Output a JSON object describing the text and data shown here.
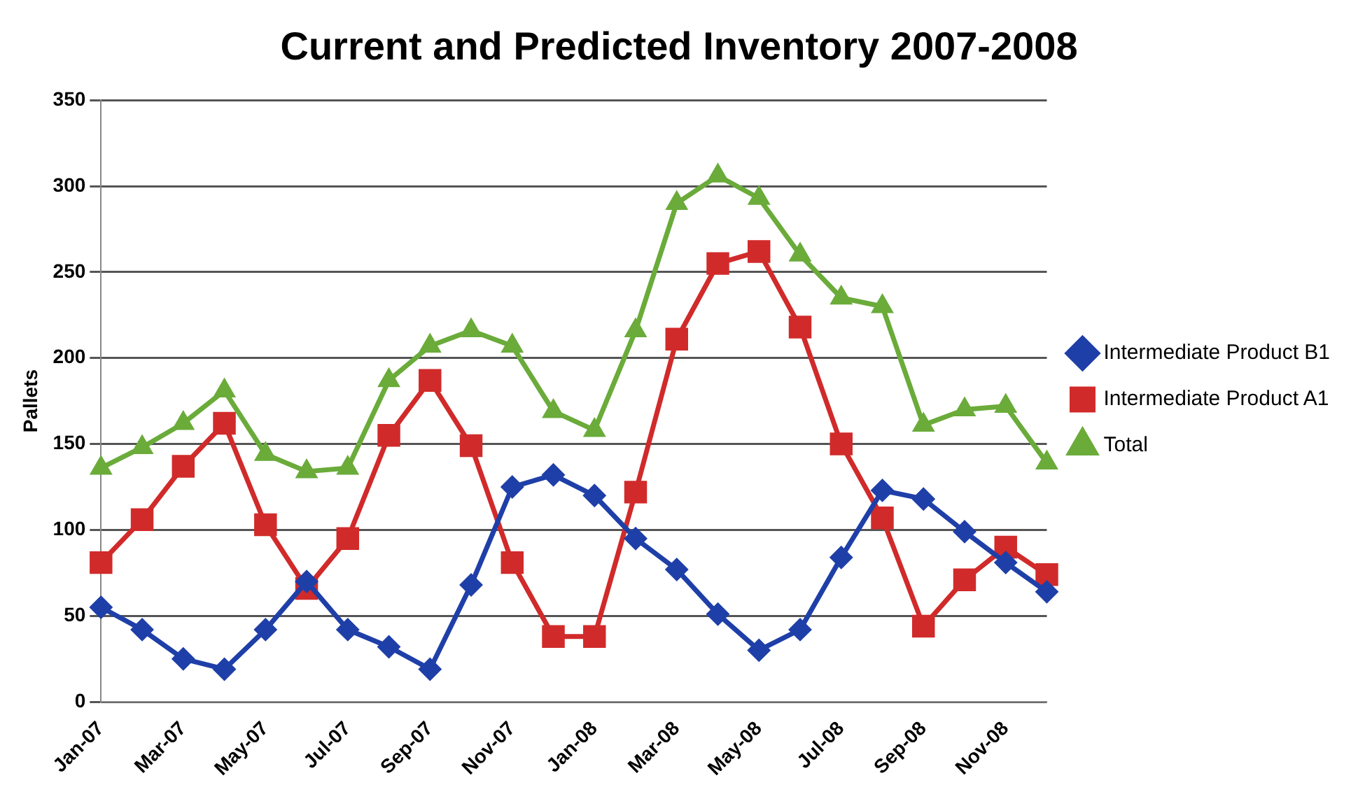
{
  "chart_data": {
    "type": "line",
    "title": "Current and Predicted Inventory 2007-2008",
    "ylabel": "Pallets",
    "categories": [
      "Jan-07",
      null,
      "Mar-07",
      null,
      "May-07",
      null,
      "Jul-07",
      null,
      "Sep-07",
      null,
      "Nov-07",
      null,
      "Jan-08",
      null,
      "Mar-08",
      null,
      "May-08",
      null,
      "Jul-08",
      null,
      "Sep-08",
      null,
      "Nov-08",
      null
    ],
    "series": [
      {
        "name": "Intermediate Product B1",
        "color": "#1f3fa8",
        "marker": "diamond",
        "values": [
          55,
          42,
          25,
          19,
          42,
          70,
          42,
          32,
          19,
          68,
          125,
          132,
          120,
          95,
          77,
          51,
          30,
          42,
          84,
          123,
          118,
          99,
          81,
          64
        ]
      },
      {
        "name": "Intermediate Product A1",
        "color": "#d12a2a",
        "marker": "square",
        "values": [
          81,
          106,
          137,
          162,
          103,
          66,
          95,
          155,
          187,
          149,
          81,
          38,
          38,
          122,
          211,
          255,
          262,
          218,
          150,
          107,
          44,
          71,
          90,
          74
        ]
      },
      {
        "name": "Total",
        "color": "#6aab3a",
        "marker": "triangle",
        "values": [
          136,
          148,
          162,
          181,
          144,
          134,
          136,
          187,
          207,
          216,
          207,
          169,
          158,
          216,
          290,
          306,
          293,
          260,
          235,
          230,
          161,
          170,
          172,
          139
        ]
      }
    ],
    "ylim": [
      0,
      350
    ],
    "yticks": [
      0,
      50,
      100,
      150,
      200,
      250,
      300,
      350
    ],
    "grid": "y",
    "legend": "right",
    "line_style": "solid"
  }
}
